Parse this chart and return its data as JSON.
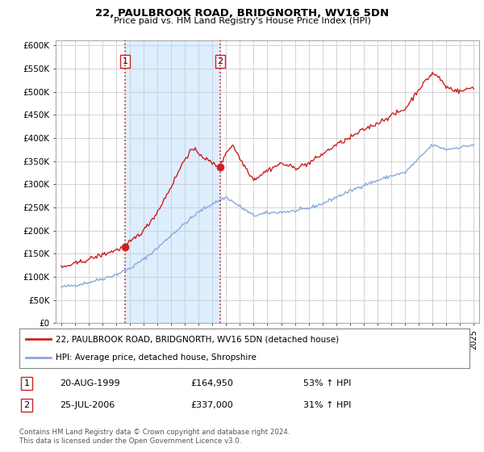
{
  "title": "22, PAULBROOK ROAD, BRIDGNORTH, WV16 5DN",
  "subtitle": "Price paid vs. HM Land Registry's House Price Index (HPI)",
  "legend_line1": "22, PAULBROOK ROAD, BRIDGNORTH, WV16 5DN (detached house)",
  "legend_line2": "HPI: Average price, detached house, Shropshire",
  "sale1_date": "20-AUG-1999",
  "sale1_price": "£164,950",
  "sale1_hpi": "53% ↑ HPI",
  "sale2_date": "25-JUL-2006",
  "sale2_price": "£337,000",
  "sale2_hpi": "31% ↑ HPI",
  "footnote1": "Contains HM Land Registry data © Crown copyright and database right 2024.",
  "footnote2": "This data is licensed under the Open Government Licence v3.0.",
  "hpi_line_color": "#88aadd",
  "price_line_color": "#cc2222",
  "sale_dot_color": "#cc2222",
  "vline_color": "#cc2222",
  "shade_color": "#ddeeff",
  "background_color": "#ffffff",
  "grid_color": "#cccccc",
  "ylim": [
    0,
    610000
  ],
  "yticks": [
    0,
    50000,
    100000,
    150000,
    200000,
    250000,
    300000,
    350000,
    400000,
    450000,
    500000,
    550000,
    600000
  ],
  "sale1_year": 1999.64,
  "sale1_price_val": 164950,
  "sale2_year": 2006.56,
  "sale2_price_val": 337000,
  "xmin": 1995,
  "xmax": 2025
}
